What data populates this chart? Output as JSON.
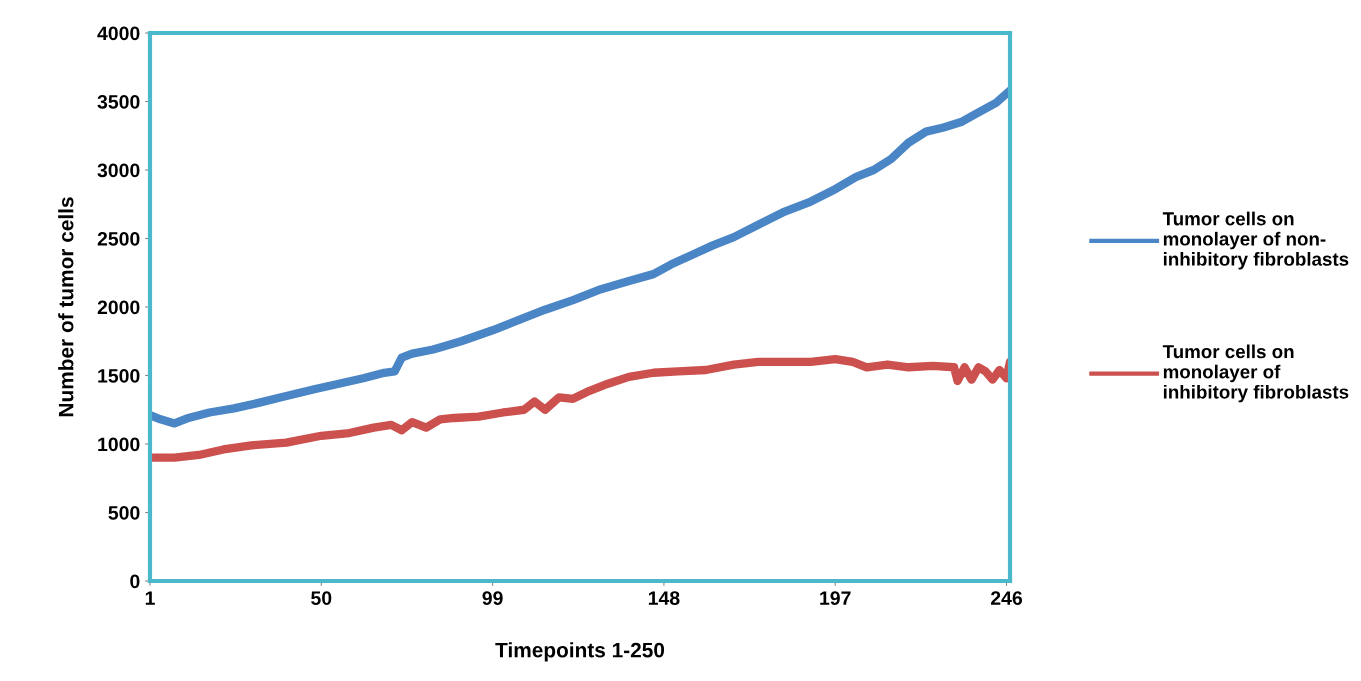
{
  "chart_data": {
    "type": "line",
    "xlabel": "Timepoints 1-250",
    "ylabel": "Number of tumor cells",
    "xlim": [
      1,
      247
    ],
    "xticks": [
      1,
      50,
      99,
      148,
      197,
      246
    ],
    "ylim": [
      0,
      4000
    ],
    "yticks": [
      0,
      500,
      1000,
      1500,
      2000,
      2500,
      3000,
      3500,
      4000
    ],
    "grid": false,
    "legend": "right",
    "marker": "none",
    "line_style": "solid",
    "series": [
      {
        "name": "Tumor cells on monolayer of non-inhibitory fibroblasts",
        "color": "#4a86c5",
        "x": [
          1,
          4,
          8,
          12,
          18,
          25,
          32,
          40,
          48,
          55,
          62,
          68,
          71,
          73,
          76,
          82,
          90,
          99,
          106,
          114,
          122,
          130,
          138,
          145,
          150,
          156,
          162,
          168,
          175,
          182,
          190,
          197,
          203,
          208,
          213,
          218,
          223,
          228,
          233,
          238,
          243,
          247
        ],
        "values": [
          1210,
          1180,
          1150,
          1190,
          1230,
          1260,
          1300,
          1350,
          1400,
          1440,
          1480,
          1520,
          1530,
          1630,
          1660,
          1690,
          1750,
          1830,
          1900,
          1980,
          2050,
          2130,
          2190,
          2240,
          2310,
          2380,
          2450,
          2510,
          2600,
          2690,
          2770,
          2860,
          2950,
          3000,
          3080,
          3200,
          3280,
          3310,
          3350,
          3420,
          3490,
          3580
        ]
      },
      {
        "name": "Tumor cells on monolayer of inhibitory fibroblasts",
        "color": "#cc504d",
        "x": [
          1,
          8,
          15,
          22,
          30,
          40,
          50,
          58,
          65,
          70,
          73,
          76,
          80,
          84,
          88,
          95,
          102,
          108,
          111,
          114,
          118,
          122,
          126,
          132,
          138,
          145,
          152,
          160,
          168,
          175,
          182,
          190,
          197,
          202,
          206,
          212,
          218,
          225,
          231,
          232,
          234,
          236,
          238,
          240,
          242,
          244,
          246,
          247
        ],
        "values": [
          900,
          900,
          920,
          960,
          990,
          1010,
          1060,
          1080,
          1120,
          1140,
          1100,
          1160,
          1120,
          1180,
          1190,
          1200,
          1230,
          1250,
          1310,
          1250,
          1340,
          1330,
          1380,
          1440,
          1490,
          1520,
          1530,
          1540,
          1580,
          1600,
          1600,
          1600,
          1620,
          1600,
          1560,
          1580,
          1560,
          1570,
          1560,
          1460,
          1560,
          1470,
          1560,
          1530,
          1470,
          1540,
          1480,
          1600
        ]
      }
    ]
  }
}
